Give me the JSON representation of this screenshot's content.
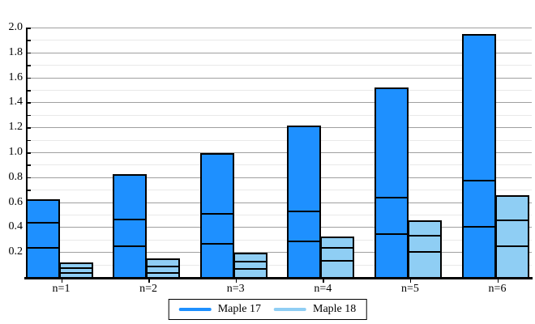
{
  "chart_data": {
    "type": "bar",
    "stacked": true,
    "title": "",
    "xlabel": "",
    "ylabel": "",
    "categories": [
      "n=1",
      "n=2",
      "n=3",
      "n=4",
      "n=5",
      "n=6"
    ],
    "series": [
      {
        "name": "Maple 17",
        "color": "#1E90FF",
        "stacks": [
          [
            0.24,
            0.2,
            0.18
          ],
          [
            0.25,
            0.22,
            0.345
          ],
          [
            0.27,
            0.24,
            0.48
          ],
          [
            0.29,
            0.245,
            0.67
          ],
          [
            0.35,
            0.29,
            0.87
          ],
          [
            0.41,
            0.37,
            1.16
          ]
        ],
        "totals": [
          0.62,
          0.815,
          0.99,
          1.205,
          1.51,
          1.94
        ]
      },
      {
        "name": "Maple 18",
        "color": "#8FCEF4",
        "stacks": [
          [
            0.04,
            0.035,
            0.035
          ],
          [
            0.04,
            0.05,
            0.05
          ],
          [
            0.07,
            0.06,
            0.06
          ],
          [
            0.135,
            0.105,
            0.08
          ],
          [
            0.21,
            0.125,
            0.11
          ],
          [
            0.25,
            0.21,
            0.19
          ]
        ],
        "totals": [
          0.11,
          0.14,
          0.19,
          0.32,
          0.445,
          0.65
        ]
      }
    ],
    "ylim": [
      0,
      2.0
    ],
    "ytick_labels": [
      "0.2",
      "0.4",
      "0.6",
      "0.8",
      "1.0",
      "1.2",
      "1.4",
      "1.6",
      "1.8",
      "2.0"
    ],
    "major_tick_step": 0.2,
    "minor_tick_step": 0.1,
    "grid": {
      "major_color": "#A0A0A0",
      "minor_color": "#E9E9E9",
      "vertical": false
    },
    "axis_color": "#000000",
    "background": "#FFFFFF",
    "legend": {
      "position": "bottom",
      "bordered": true
    }
  }
}
